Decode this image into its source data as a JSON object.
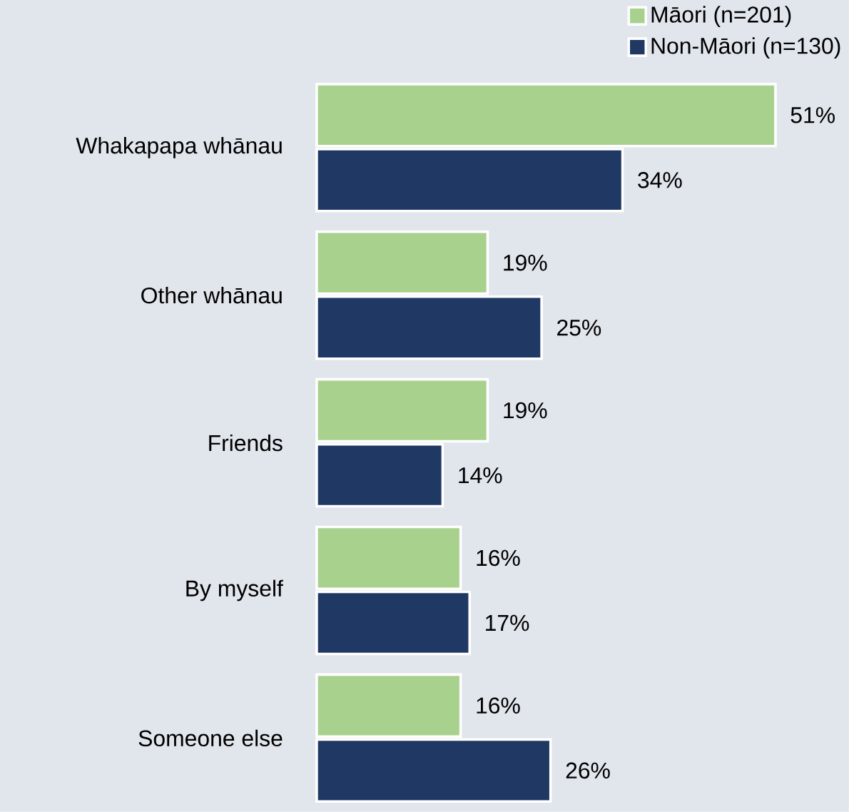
{
  "chart_data": {
    "type": "bar",
    "orientation": "horizontal",
    "legend": "top right",
    "categories": [
      "Whakapapa whānau",
      "Other whānau",
      "Friends",
      "By myself",
      "Someone else"
    ],
    "series": [
      {
        "name": "Māori (n=201)",
        "color": "#a9d18e",
        "values": [
          51,
          19,
          19,
          16,
          16
        ],
        "value_labels": [
          "51%",
          "19%",
          "19%",
          "16%",
          "16%"
        ]
      },
      {
        "name": "Non-Māori (n=130)",
        "color": "#203864",
        "values": [
          34,
          25,
          14,
          17,
          26
        ],
        "value_labels": [
          "34%",
          "25%",
          "14%",
          "17%",
          "26%"
        ]
      }
    ]
  }
}
